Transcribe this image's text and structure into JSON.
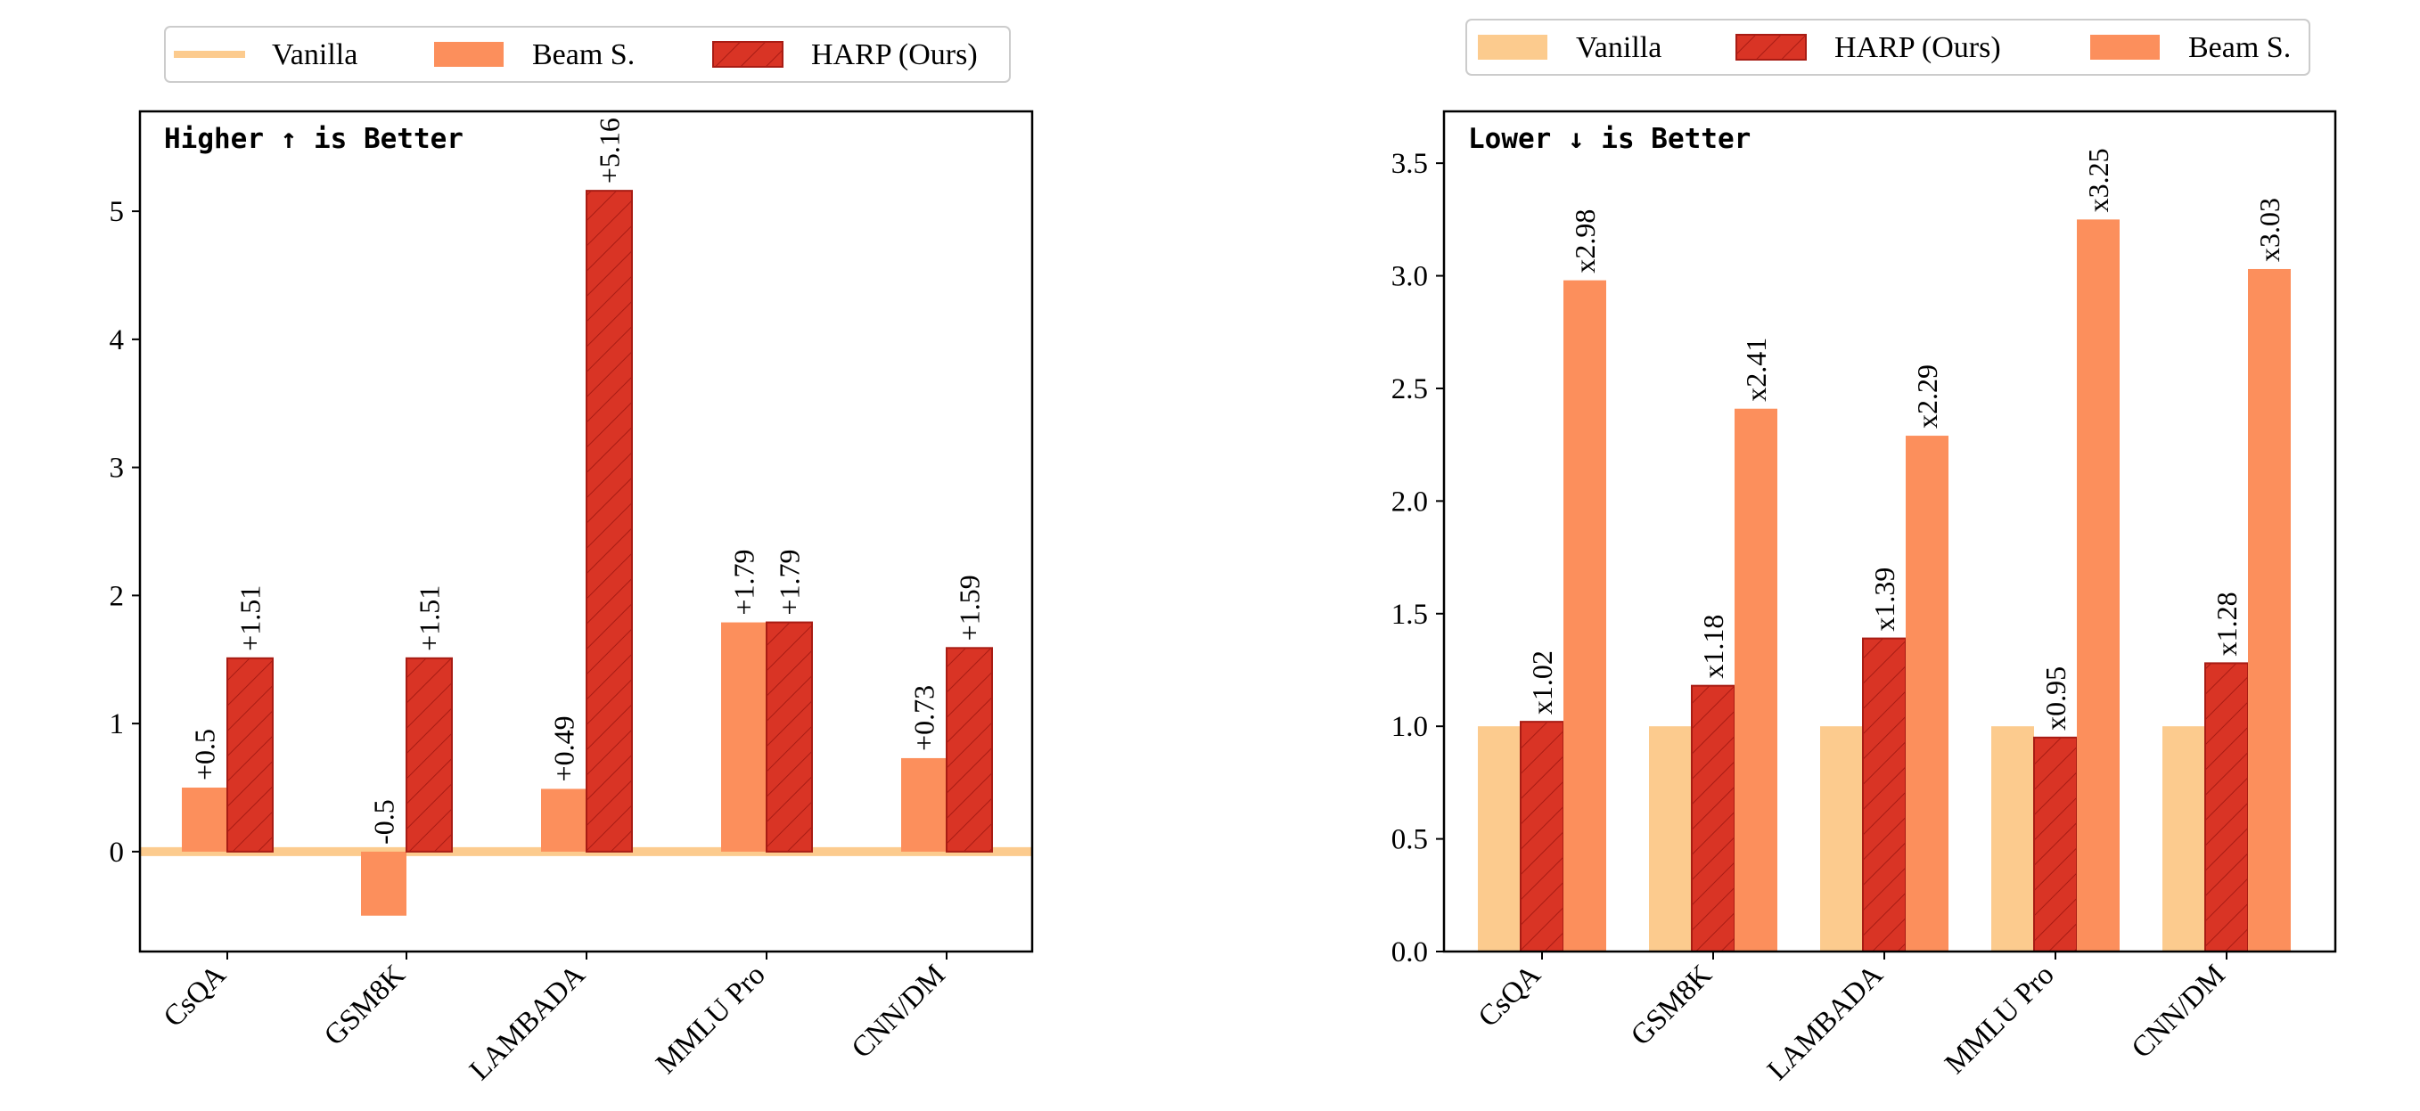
{
  "colors": {
    "vanilla": "#FCCB8E",
    "beam": "#FC8F5C",
    "harp": "#D93425",
    "harp_edge": "#A81C14",
    "axis": "#000000"
  },
  "chart_data": [
    {
      "type": "bar",
      "annotation": "Higher ↑ is Better",
      "categories": [
        "CsQA",
        "GSM8K",
        "LAMBADA",
        "MMLU Pro",
        "CNN/DM"
      ],
      "ylim": [
        -0.78,
        5.78
      ],
      "yticks": [
        0,
        1,
        2,
        3,
        4,
        5
      ],
      "grid": false,
      "legend": {
        "placement": "top-center",
        "entries": [
          {
            "label": "Vanilla",
            "key": "vanilla",
            "style": "line"
          },
          {
            "label": "Beam S.",
            "key": "beam",
            "style": "patch"
          },
          {
            "label": "HARP (Ours)",
            "key": "harp",
            "style": "hatch"
          }
        ]
      },
      "baseline": {
        "name": "Vanilla",
        "value": 0
      },
      "series": [
        {
          "name": "Beam S.",
          "key": "beam",
          "values": [
            0.5,
            -0.5,
            0.49,
            1.79,
            0.73
          ],
          "labels": [
            "+0.5",
            "-0.5",
            "+0.49",
            "+1.79",
            "+0.73"
          ]
        },
        {
          "name": "HARP (Ours)",
          "key": "harp",
          "values": [
            1.51,
            1.51,
            5.16,
            1.79,
            1.59
          ],
          "labels": [
            "+1.51",
            "+1.51",
            "+5.16",
            "+1.79",
            "+1.59"
          ]
        }
      ]
    },
    {
      "type": "bar",
      "annotation": "Lower ↓ is Better",
      "categories": [
        "CsQA",
        "GSM8K",
        "LAMBADA",
        "MMLU Pro",
        "CNN/DM"
      ],
      "ylim": [
        0,
        3.73
      ],
      "yticks": [
        "0.0",
        "0.5",
        "1.0",
        "1.5",
        "2.0",
        "2.5",
        "3.0",
        "3.5"
      ],
      "grid": false,
      "legend": {
        "placement": "top-center",
        "entries": [
          {
            "label": "Vanilla",
            "key": "vanilla",
            "style": "patch"
          },
          {
            "label": "HARP (Ours)",
            "key": "harp",
            "style": "hatch"
          },
          {
            "label": "Beam S.",
            "key": "beam",
            "style": "patch"
          }
        ]
      },
      "series": [
        {
          "name": "Vanilla",
          "key": "vanilla",
          "values": [
            1.0,
            1.0,
            1.0,
            1.0,
            1.0
          ],
          "labels": [
            "",
            "",
            "",
            "",
            ""
          ]
        },
        {
          "name": "HARP (Ours)",
          "key": "harp",
          "values": [
            1.02,
            1.18,
            1.39,
            0.95,
            1.28
          ],
          "labels": [
            "x1.02",
            "x1.18",
            "x1.39",
            "x0.95",
            "x1.28"
          ]
        },
        {
          "name": "Beam S.",
          "key": "beam",
          "values": [
            2.98,
            2.41,
            2.29,
            3.25,
            3.03
          ],
          "labels": [
            "x2.98",
            "x2.41",
            "x2.29",
            "x3.25",
            "x3.03"
          ]
        }
      ]
    }
  ]
}
